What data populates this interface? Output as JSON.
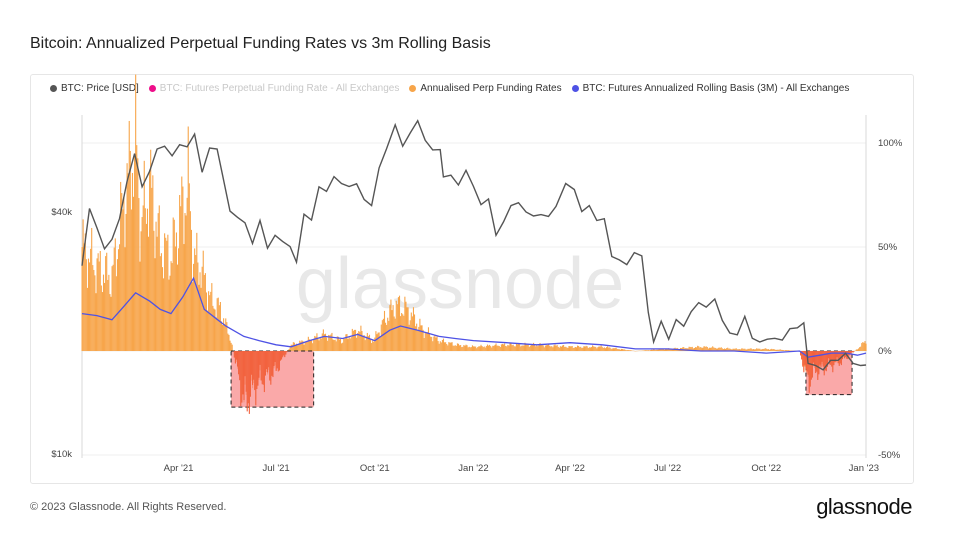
{
  "page": {
    "title": "Bitcoin: Annualized Perpetual Funding Rates vs 3m Rolling Basis",
    "copyright": "© 2023 Glassnode. All Rights Reserved.",
    "brand": "glassnode",
    "watermark": "glassnode"
  },
  "colors": {
    "price": "#555555",
    "funding_legend": "#ee0e8a",
    "annualised": "#f7a54a",
    "basis": "#4e52e5",
    "highlight_fill": "#f88c8c",
    "highlight_border": "#222222"
  },
  "legend": [
    {
      "label": "BTC: Price [USD]",
      "color": "#555555",
      "muted": false
    },
    {
      "label": "BTC: Futures Perpetual Funding Rate - All Exchanges",
      "color": "#ee0e8a",
      "muted": true
    },
    {
      "label": "Annualised Perp Funding Rates",
      "color": "#f7a54a",
      "muted": false
    },
    {
      "label": "BTC: Futures Annualized Rolling Basis (3M) - All Exchanges",
      "color": "#4e52e5",
      "muted": false
    }
  ],
  "chart_data": {
    "type": "line",
    "title": "Bitcoin: Annualized Perpetual Funding Rates vs 3m Rolling Basis",
    "x_range": [
      "2021-01-01",
      "2023-01-02"
    ],
    "x_ticks": [
      "Apr '21",
      "Jul '21",
      "Oct '21",
      "Jan '22",
      "Apr '22",
      "Jul '22",
      "Oct '22",
      "Jan '23"
    ],
    "left_axis": {
      "scale": "log",
      "ticks": [
        "$40k",
        "$10k"
      ],
      "tick_values": [
        40000,
        10000
      ],
      "range": [
        10000,
        70000
      ]
    },
    "right_axis": {
      "scale": "linear",
      "ticks": [
        "100%",
        "50%",
        "0%",
        "-50%"
      ],
      "tick_values": [
        100,
        50,
        0,
        -50
      ],
      "range": [
        -50,
        110
      ]
    },
    "series": [
      {
        "name": "BTC: Price [USD]",
        "axis": "left",
        "x": [
          "2021-01-01",
          "2021-01-08",
          "2021-01-15",
          "2021-01-22",
          "2021-01-29",
          "2021-02-05",
          "2021-02-12",
          "2021-02-19",
          "2021-02-26",
          "2021-03-05",
          "2021-03-12",
          "2021-03-19",
          "2021-03-26",
          "2021-04-02",
          "2021-04-09",
          "2021-04-16",
          "2021-04-23",
          "2021-04-30",
          "2021-05-07",
          "2021-05-12",
          "2021-05-19",
          "2021-05-26",
          "2021-06-02",
          "2021-06-09",
          "2021-06-16",
          "2021-06-23",
          "2021-06-30",
          "2021-07-07",
          "2021-07-14",
          "2021-07-20",
          "2021-07-27",
          "2021-08-03",
          "2021-08-10",
          "2021-08-17",
          "2021-08-24",
          "2021-08-31",
          "2021-09-07",
          "2021-09-14",
          "2021-09-21",
          "2021-09-28",
          "2021-10-05",
          "2021-10-12",
          "2021-10-20",
          "2021-10-27",
          "2021-11-03",
          "2021-11-10",
          "2021-11-17",
          "2021-11-24",
          "2021-12-01",
          "2021-12-04",
          "2021-12-11",
          "2021-12-18",
          "2021-12-25",
          "2022-01-01",
          "2022-01-08",
          "2022-01-15",
          "2022-01-22",
          "2022-01-29",
          "2022-02-05",
          "2022-02-12",
          "2022-02-19",
          "2022-02-26",
          "2022-03-05",
          "2022-03-12",
          "2022-03-19",
          "2022-03-28",
          "2022-04-05",
          "2022-04-12",
          "2022-04-19",
          "2022-04-26",
          "2022-05-03",
          "2022-05-10",
          "2022-05-17",
          "2022-05-24",
          "2022-05-31",
          "2022-06-07",
          "2022-06-13",
          "2022-06-18",
          "2022-06-25",
          "2022-07-02",
          "2022-07-09",
          "2022-07-16",
          "2022-07-23",
          "2022-07-30",
          "2022-08-06",
          "2022-08-14",
          "2022-08-21",
          "2022-08-28",
          "2022-09-04",
          "2022-09-11",
          "2022-09-18",
          "2022-09-25",
          "2022-10-02",
          "2022-10-09",
          "2022-10-16",
          "2022-10-23",
          "2022-10-30",
          "2022-11-05",
          "2022-11-09",
          "2022-11-16",
          "2022-11-23",
          "2022-11-30",
          "2022-12-07",
          "2022-12-14",
          "2022-12-21",
          "2022-12-28",
          "2023-01-02"
        ],
        "values": [
          29400,
          40800,
          36500,
          32400,
          34200,
          38500,
          47600,
          55900,
          46200,
          50500,
          57400,
          58300,
          55200,
          58800,
          58100,
          62500,
          50200,
          57700,
          57400,
          49500,
          40200,
          38800,
          37600,
          33400,
          38100,
          32500,
          35000,
          33800,
          32800,
          30000,
          39500,
          38200,
          46200,
          45000,
          49000,
          47100,
          46300,
          47000,
          43000,
          41500,
          51500,
          57500,
          65900,
          58300,
          62900,
          67500,
          60300,
          57100,
          57200,
          48900,
          49400,
          46700,
          50800,
          46300,
          41700,
          43100,
          35000,
          37800,
          41500,
          42200,
          40000,
          39100,
          39400,
          39000,
          41300,
          47100,
          45500,
          40100,
          41500,
          38100,
          38500,
          31000,
          30400,
          29600,
          31700,
          31100,
          22500,
          19000,
          21400,
          19300,
          21600,
          20800,
          22600,
          23800,
          23200,
          24300,
          21500,
          20000,
          19800,
          22000,
          19400,
          19000,
          19300,
          19400,
          19200,
          20500,
          20600,
          21200,
          16800,
          16600,
          16200,
          17100,
          17100,
          17800,
          16800,
          16600,
          16650
        ]
      },
      {
        "name": "Annualised Perp Funding Rates",
        "axis": "right",
        "x": [
          "2021-01-01",
          "2021-01-15",
          "2021-01-29",
          "2021-02-10",
          "2021-02-20",
          "2021-02-25",
          "2021-03-05",
          "2021-03-15",
          "2021-03-25",
          "2021-04-05",
          "2021-04-10",
          "2021-04-15",
          "2021-04-22",
          "2021-05-01",
          "2021-05-10",
          "2021-05-20",
          "2021-06-01",
          "2021-06-15",
          "2021-06-30",
          "2021-07-15",
          "2021-07-31",
          "2021-08-15",
          "2021-08-31",
          "2021-09-15",
          "2021-09-30",
          "2021-10-10",
          "2021-10-20",
          "2021-10-31",
          "2021-11-15",
          "2021-11-30",
          "2021-12-15",
          "2022-01-01",
          "2022-02-01",
          "2022-03-01",
          "2022-04-01",
          "2022-05-01",
          "2022-06-01",
          "2022-07-01",
          "2022-08-01",
          "2022-09-01",
          "2022-10-01",
          "2022-11-01",
          "2022-11-09",
          "2022-11-15",
          "2022-11-25",
          "2022-12-10",
          "2022-12-25",
          "2023-01-02"
        ],
        "values": [
          50,
          40,
          35,
          75,
          100,
          60,
          80,
          50,
          45,
          70,
          80,
          45,
          40,
          25,
          20,
          5,
          -25,
          -15,
          -10,
          3,
          5,
          8,
          5,
          10,
          5,
          15,
          22,
          20,
          10,
          5,
          3,
          2,
          3,
          3,
          2,
          2,
          0,
          1,
          2,
          1,
          1,
          0,
          -15,
          -10,
          -8,
          -5,
          1,
          5
        ]
      },
      {
        "name": "BTC: Futures Annualized Rolling Basis (3M) - All Exchanges",
        "axis": "right",
        "x": [
          "2021-01-01",
          "2021-01-15",
          "2021-01-29",
          "2021-02-10",
          "2021-02-20",
          "2021-03-05",
          "2021-03-15",
          "2021-03-25",
          "2021-04-05",
          "2021-04-15",
          "2021-04-25",
          "2021-05-05",
          "2021-05-15",
          "2021-06-01",
          "2021-06-15",
          "2021-07-01",
          "2021-07-15",
          "2021-08-01",
          "2021-08-15",
          "2021-09-01",
          "2021-09-15",
          "2021-10-01",
          "2021-10-15",
          "2021-10-25",
          "2021-11-10",
          "2021-11-30",
          "2021-12-15",
          "2022-01-01",
          "2022-02-01",
          "2022-03-01",
          "2022-04-01",
          "2022-05-01",
          "2022-06-01",
          "2022-07-01",
          "2022-08-01",
          "2022-09-01",
          "2022-10-01",
          "2022-11-01",
          "2022-11-09",
          "2022-11-20",
          "2022-12-01",
          "2022-12-15",
          "2022-12-25",
          "2023-01-02"
        ],
        "values": [
          18,
          17,
          15,
          22,
          28,
          24,
          20,
          18,
          26,
          35,
          20,
          16,
          12,
          7,
          5,
          3,
          2,
          5,
          7,
          6,
          8,
          5,
          10,
          12,
          10,
          7,
          6,
          5,
          4,
          3,
          4,
          3,
          1,
          1,
          0,
          0,
          -1,
          0,
          -3,
          -2,
          -1,
          -1,
          -2,
          -1
        ]
      }
    ],
    "highlights": [
      {
        "x_range": [
          "2021-05-20",
          "2021-08-05"
        ],
        "y_range": [
          -27,
          0
        ],
        "axis": "right"
      },
      {
        "x_range": [
          "2022-11-07",
          "2022-12-20"
        ],
        "y_range": [
          -21,
          0
        ],
        "axis": "right"
      }
    ]
  }
}
